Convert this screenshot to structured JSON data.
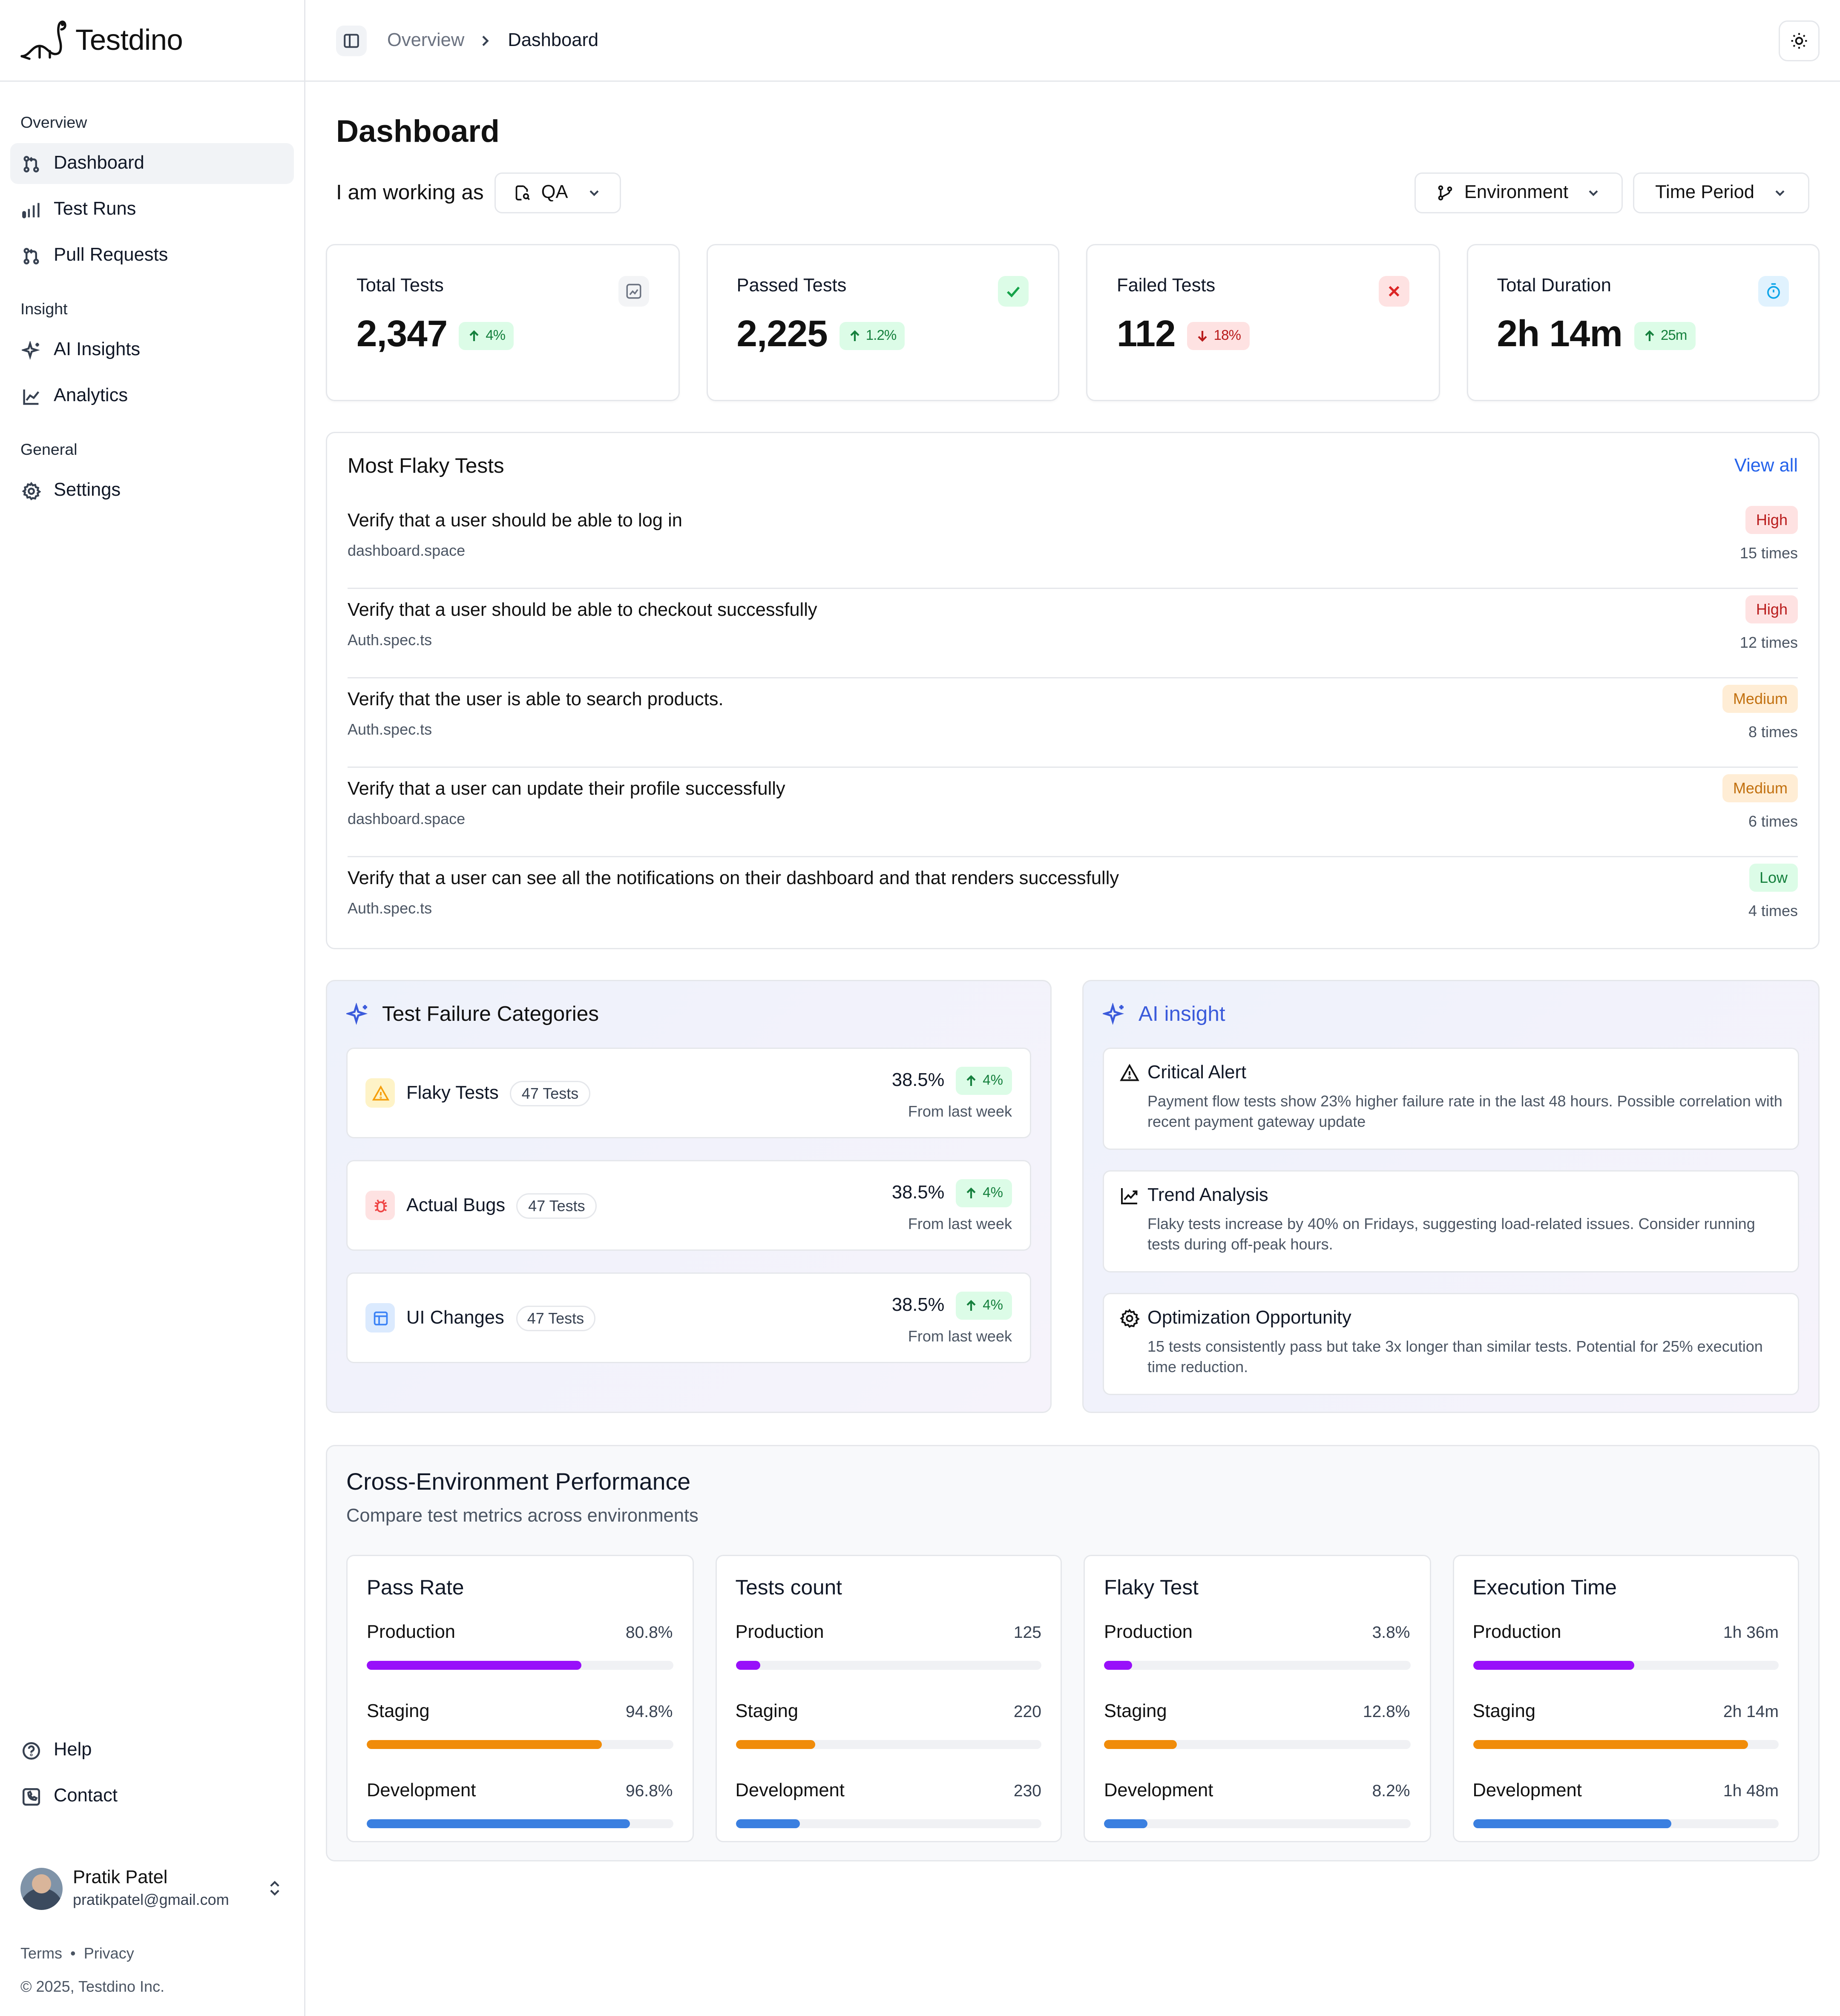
{
  "brand": {
    "name": "Testdino"
  },
  "sidebar": {
    "sections": [
      {
        "heading": "Overview",
        "items": [
          {
            "label": "Dashboard",
            "icon": "git-pull-request-icon",
            "active": true
          },
          {
            "label": "Test Runs",
            "icon": "bar-chart-icon"
          },
          {
            "label": "Pull Requests",
            "icon": "git-pull-request-icon"
          }
        ]
      },
      {
        "heading": "Insight",
        "items": [
          {
            "label": "AI Insights",
            "icon": "sparkles-icon"
          },
          {
            "label": "Analytics",
            "icon": "line-chart-icon"
          }
        ]
      },
      {
        "heading": "General",
        "items": [
          {
            "label": "Settings",
            "icon": "gear-icon"
          }
        ]
      }
    ],
    "bottom": [
      {
        "label": "Help",
        "icon": "help-circle-icon"
      },
      {
        "label": "Contact",
        "icon": "phone-icon"
      }
    ],
    "user": {
      "name": "Pratik Patel",
      "email": "pratikpatel@gmail.com"
    },
    "legal": {
      "terms": "Terms",
      "sep": "•",
      "privacy": "Privacy",
      "copyright": "© 2025, Testdino Inc."
    }
  },
  "topbar": {
    "crumb": "Overview",
    "current": "Dashboard"
  },
  "page": {
    "title": "Dashboard",
    "working_as_label": "I am working as",
    "role": "QA",
    "filters": {
      "environment": "Environment",
      "time_period": "Time Period"
    }
  },
  "kpis": [
    {
      "label": "Total Tests",
      "value": "2,347",
      "delta": "4%",
      "dir": "up",
      "icon": "chart-square-icon"
    },
    {
      "label": "Passed Tests",
      "value": "2,225",
      "delta": "1.2%",
      "dir": "up",
      "icon": "check-icon"
    },
    {
      "label": "Failed Tests",
      "value": "112",
      "delta": "18%",
      "dir": "down",
      "icon": "x-icon"
    },
    {
      "label": "Total Duration",
      "value": "2h 14m",
      "delta": "25m",
      "dir": "up",
      "icon": "timer-icon"
    }
  ],
  "flaky": {
    "title": "Most Flaky Tests",
    "view_all": "View all",
    "rows": [
      {
        "name": "Verify that a user should be able to log in",
        "file": "dashboard.space",
        "severity": "High",
        "times": "15 times"
      },
      {
        "name": "Verify that a user should be able to checkout successfully",
        "file": "Auth.spec.ts",
        "severity": "High",
        "times": "12 times"
      },
      {
        "name": "Verify that the user is able to search products.",
        "file": "Auth.spec.ts",
        "severity": "Medium",
        "times": "8 times"
      },
      {
        "name": "Verify that a user can update their profile successfully",
        "file": "dashboard.space",
        "severity": "Medium",
        "times": "6 times"
      },
      {
        "name": "Verify that a user can see all the notifications on their dashboard and that renders successfully",
        "file": "Auth.spec.ts",
        "severity": "Low",
        "times": "4 times"
      }
    ]
  },
  "failure_categories": {
    "title": "Test Failure Categories",
    "items": [
      {
        "name": "Flaky Tests",
        "count": "47 Tests",
        "pct": "38.5%",
        "delta": "4%",
        "sub": "From last week",
        "icon": "warning-icon",
        "color": "#f59e0b",
        "bg": "#fef3c7"
      },
      {
        "name": "Actual Bugs",
        "count": "47 Tests",
        "pct": "38.5%",
        "delta": "4%",
        "sub": "From last week",
        "icon": "bug-icon",
        "color": "#ef4444",
        "bg": "#fee2e2"
      },
      {
        "name": "UI Changes",
        "count": "47 Tests",
        "pct": "38.5%",
        "delta": "4%",
        "sub": "From last week",
        "icon": "layout-icon",
        "color": "#3b82f6",
        "bg": "#dbeafe"
      }
    ]
  },
  "ai_insight": {
    "title": "AI insight",
    "items": [
      {
        "title": "Critical Alert",
        "icon": "warning-icon",
        "text": "Payment flow tests show 23% higher failure rate in the last 48 hours. Possible correlation with recent payment gateway update"
      },
      {
        "title": "Trend Analysis",
        "icon": "trending-up-icon",
        "text": "Flaky tests increase by 40% on Fridays, suggesting load-related issues. Consider running tests during off-peak hours."
      },
      {
        "title": "Optimization Opportunity",
        "icon": "gear-icon",
        "text": "15 tests consistently pass but take 3x longer than similar tests. Potential for 25% execution time reduction."
      }
    ]
  },
  "cross_env": {
    "title": "Cross-Environment Performance",
    "subtitle": "Compare test metrics across environments",
    "colors": {
      "Production": "#9810fa",
      "Staging": "#f08c0a",
      "Development": "#3a7fe0"
    },
    "metrics": [
      {
        "title": "Pass Rate",
        "rows": [
          {
            "env": "Production",
            "value": "80.8%",
            "level": 0.7
          },
          {
            "env": "Staging",
            "value": "94.8%",
            "level": 0.77
          },
          {
            "env": "Development",
            "value": "96.8%",
            "level": 0.86
          }
        ]
      },
      {
        "title": "Tests count",
        "rows": [
          {
            "env": "Production",
            "value": "125",
            "level": 0.08
          },
          {
            "env": "Staging",
            "value": "220",
            "level": 0.26
          },
          {
            "env": "Development",
            "value": "230",
            "level": 0.21
          }
        ]
      },
      {
        "title": "Flaky Test",
        "rows": [
          {
            "env": "Production",
            "value": "3.8%",
            "level": 0.09
          },
          {
            "env": "Staging",
            "value": "12.8%",
            "level": 0.24
          },
          {
            "env": "Development",
            "value": "8.2%",
            "level": 0.14
          }
        ]
      },
      {
        "title": "Execution Time",
        "rows": [
          {
            "env": "Production",
            "value": "1h 36m",
            "level": 0.53
          },
          {
            "env": "Staging",
            "value": "2h 14m",
            "level": 0.9
          },
          {
            "env": "Development",
            "value": "1h 48m",
            "level": 0.65
          }
        ]
      }
    ]
  }
}
